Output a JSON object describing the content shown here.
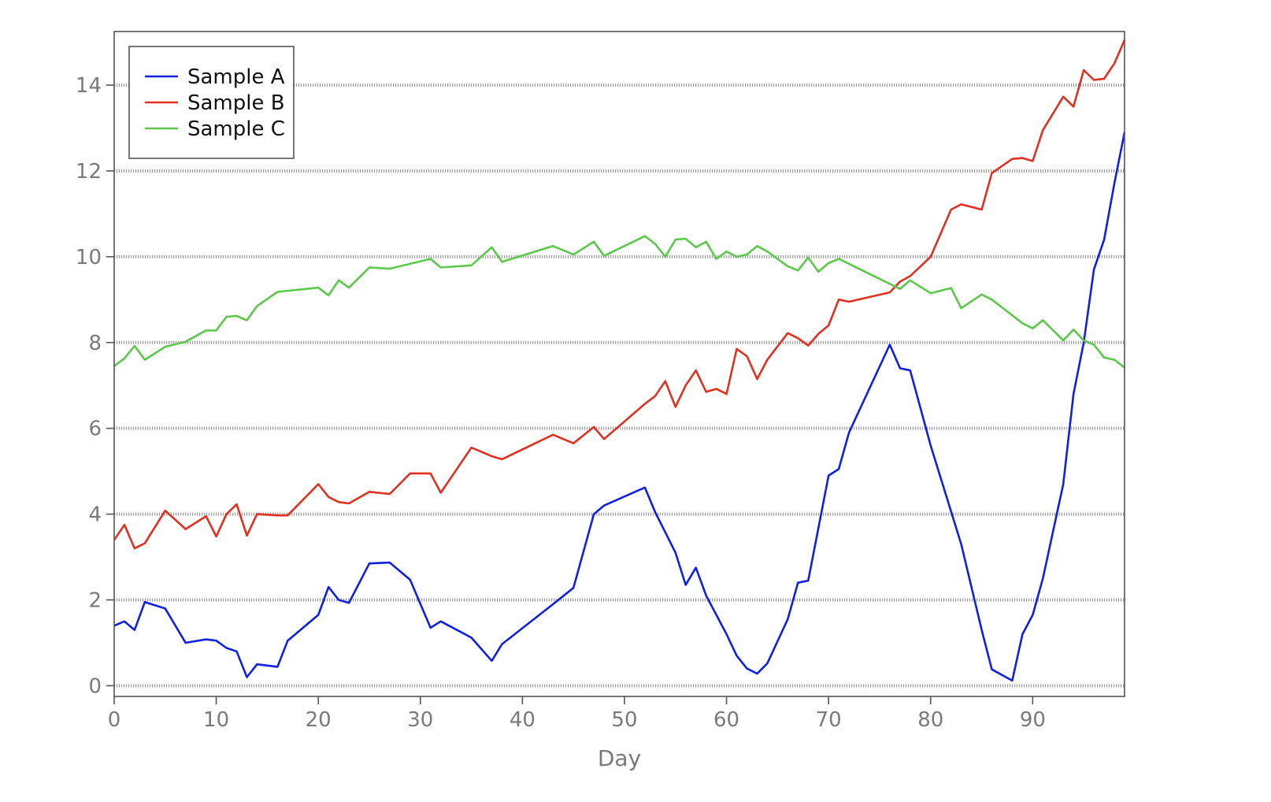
{
  "chart_data": {
    "type": "line",
    "title": "",
    "xlabel": "Day",
    "ylabel": "",
    "xlim": [
      0,
      99
    ],
    "ylim": [
      -0.25,
      15.25
    ],
    "xticks": [
      0,
      10,
      20,
      30,
      40,
      50,
      60,
      70,
      80,
      90
    ],
    "yticks": [
      0,
      2,
      4,
      6,
      8,
      10,
      12,
      14
    ],
    "grid": "horizontal-dotted",
    "legend_position": "top-left",
    "series": [
      {
        "name": "Sample A",
        "color": "#1020e0",
        "points": [
          [
            0,
            1.4
          ],
          [
            1,
            1.5
          ],
          [
            2,
            1.3
          ],
          [
            3,
            1.95
          ],
          [
            5,
            1.8
          ],
          [
            7,
            1.0
          ],
          [
            9,
            1.08
          ],
          [
            10,
            1.05
          ],
          [
            11,
            0.88
          ],
          [
            12,
            0.8
          ],
          [
            13,
            0.2
          ],
          [
            14,
            0.5
          ],
          [
            16,
            0.44
          ],
          [
            17,
            1.05
          ],
          [
            20,
            1.65
          ],
          [
            21,
            2.3
          ],
          [
            22,
            2.0
          ],
          [
            23,
            1.93
          ],
          [
            25,
            2.85
          ],
          [
            27,
            2.87
          ],
          [
            29,
            2.47
          ],
          [
            31,
            1.35
          ],
          [
            32,
            1.5
          ],
          [
            35,
            1.12
          ],
          [
            37,
            0.58
          ],
          [
            38,
            0.97
          ],
          [
            43,
            1.9
          ],
          [
            45,
            2.28
          ],
          [
            47,
            4.0
          ],
          [
            48,
            4.2
          ],
          [
            52,
            4.62
          ],
          [
            53,
            4.05
          ],
          [
            55,
            3.1
          ],
          [
            56,
            2.35
          ],
          [
            57,
            2.75
          ],
          [
            58,
            2.1
          ],
          [
            60,
            1.2
          ],
          [
            61,
            0.7
          ],
          [
            62,
            0.4
          ],
          [
            63,
            0.28
          ],
          [
            64,
            0.52
          ],
          [
            66,
            1.55
          ],
          [
            67,
            2.4
          ],
          [
            68,
            2.45
          ],
          [
            70,
            4.9
          ],
          [
            71,
            5.05
          ],
          [
            72,
            5.9
          ],
          [
            76,
            7.95
          ],
          [
            77,
            7.4
          ],
          [
            78,
            7.35
          ],
          [
            80,
            5.6
          ],
          [
            83,
            3.3
          ],
          [
            85,
            1.3
          ],
          [
            86,
            0.38
          ],
          [
            88,
            0.12
          ],
          [
            89,
            1.2
          ],
          [
            90,
            1.65
          ],
          [
            91,
            2.5
          ],
          [
            93,
            4.7
          ],
          [
            94,
            6.8
          ],
          [
            95,
            8.0
          ],
          [
            96,
            9.7
          ],
          [
            97,
            10.4
          ],
          [
            98,
            11.7
          ],
          [
            99,
            12.9
          ]
        ]
      },
      {
        "name": "Sample B",
        "color": "#e03020",
        "points": [
          [
            0,
            3.4
          ],
          [
            1,
            3.75
          ],
          [
            2,
            3.2
          ],
          [
            3,
            3.32
          ],
          [
            5,
            4.08
          ],
          [
            7,
            3.65
          ],
          [
            9,
            3.95
          ],
          [
            10,
            3.48
          ],
          [
            11,
            4.0
          ],
          [
            12,
            4.23
          ],
          [
            13,
            3.5
          ],
          [
            14,
            4.0
          ],
          [
            16,
            3.97
          ],
          [
            17,
            3.97
          ],
          [
            20,
            4.7
          ],
          [
            21,
            4.4
          ],
          [
            22,
            4.28
          ],
          [
            23,
            4.25
          ],
          [
            25,
            4.52
          ],
          [
            27,
            4.47
          ],
          [
            29,
            4.95
          ],
          [
            31,
            4.95
          ],
          [
            32,
            4.5
          ],
          [
            35,
            5.55
          ],
          [
            37,
            5.35
          ],
          [
            38,
            5.28
          ],
          [
            43,
            5.85
          ],
          [
            45,
            5.65
          ],
          [
            47,
            6.03
          ],
          [
            48,
            5.75
          ],
          [
            52,
            6.57
          ],
          [
            53,
            6.75
          ],
          [
            54,
            7.1
          ],
          [
            55,
            6.5
          ],
          [
            56,
            7.0
          ],
          [
            57,
            7.35
          ],
          [
            58,
            6.85
          ],
          [
            59,
            6.92
          ],
          [
            60,
            6.8
          ],
          [
            61,
            7.85
          ],
          [
            62,
            7.68
          ],
          [
            63,
            7.15
          ],
          [
            64,
            7.6
          ],
          [
            66,
            8.22
          ],
          [
            67,
            8.1
          ],
          [
            68,
            7.93
          ],
          [
            69,
            8.2
          ],
          [
            70,
            8.4
          ],
          [
            71,
            9.0
          ],
          [
            72,
            8.95
          ],
          [
            76,
            9.17
          ],
          [
            77,
            9.42
          ],
          [
            78,
            9.55
          ],
          [
            80,
            10.0
          ],
          [
            82,
            11.1
          ],
          [
            83,
            11.22
          ],
          [
            85,
            11.1
          ],
          [
            86,
            11.95
          ],
          [
            88,
            12.28
          ],
          [
            89,
            12.3
          ],
          [
            90,
            12.23
          ],
          [
            91,
            12.95
          ],
          [
            93,
            13.73
          ],
          [
            94,
            13.5
          ],
          [
            95,
            14.35
          ],
          [
            96,
            14.12
          ],
          [
            97,
            14.15
          ],
          [
            98,
            14.5
          ],
          [
            99,
            15.05
          ]
        ]
      },
      {
        "name": "Sample C",
        "color": "#5cc84c",
        "points": [
          [
            0,
            7.45
          ],
          [
            1,
            7.63
          ],
          [
            2,
            7.92
          ],
          [
            3,
            7.6
          ],
          [
            5,
            7.9
          ],
          [
            7,
            8.02
          ],
          [
            9,
            8.28
          ],
          [
            10,
            8.28
          ],
          [
            11,
            8.6
          ],
          [
            12,
            8.62
          ],
          [
            13,
            8.52
          ],
          [
            14,
            8.85
          ],
          [
            16,
            9.18
          ],
          [
            20,
            9.28
          ],
          [
            21,
            9.1
          ],
          [
            22,
            9.45
          ],
          [
            23,
            9.28
          ],
          [
            25,
            9.75
          ],
          [
            27,
            9.72
          ],
          [
            31,
            9.95
          ],
          [
            32,
            9.75
          ],
          [
            35,
            9.8
          ],
          [
            37,
            10.22
          ],
          [
            38,
            9.88
          ],
          [
            43,
            10.25
          ],
          [
            45,
            10.05
          ],
          [
            47,
            10.35
          ],
          [
            48,
            10.02
          ],
          [
            52,
            10.48
          ],
          [
            53,
            10.3
          ],
          [
            54,
            10.0
          ],
          [
            55,
            10.4
          ],
          [
            56,
            10.42
          ],
          [
            57,
            10.22
          ],
          [
            58,
            10.35
          ],
          [
            59,
            9.95
          ],
          [
            60,
            10.12
          ],
          [
            61,
            10.0
          ],
          [
            62,
            10.05
          ],
          [
            63,
            10.25
          ],
          [
            64,
            10.12
          ],
          [
            66,
            9.78
          ],
          [
            67,
            9.68
          ],
          [
            68,
            9.98
          ],
          [
            69,
            9.65
          ],
          [
            70,
            9.85
          ],
          [
            71,
            9.95
          ],
          [
            77,
            9.25
          ],
          [
            78,
            9.45
          ],
          [
            80,
            9.15
          ],
          [
            82,
            9.27
          ],
          [
            83,
            8.8
          ],
          [
            85,
            9.12
          ],
          [
            86,
            9.0
          ],
          [
            89,
            8.45
          ],
          [
            90,
            8.33
          ],
          [
            91,
            8.52
          ],
          [
            93,
            8.05
          ],
          [
            94,
            8.3
          ],
          [
            95,
            8.05
          ],
          [
            96,
            7.95
          ],
          [
            97,
            7.65
          ],
          [
            98,
            7.6
          ],
          [
            99,
            7.42
          ]
        ]
      }
    ]
  }
}
